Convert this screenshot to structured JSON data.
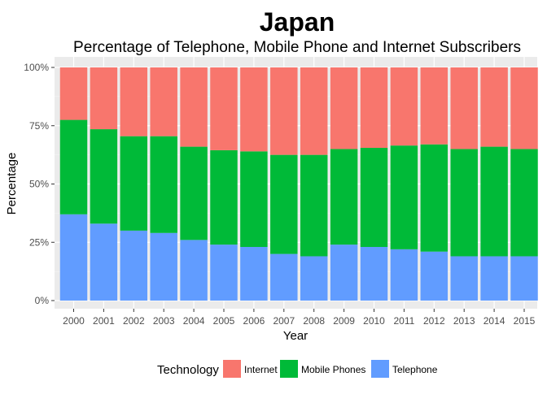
{
  "chart_data": {
    "type": "bar",
    "stacked": true,
    "normalized": true,
    "title": "Japan",
    "subtitle": "Percentage of Telephone, Mobile Phone and Internet Subscribers",
    "xlabel": "Year",
    "ylabel": "Percentage",
    "ylim": [
      0,
      1
    ],
    "yticks": [
      "0%",
      "25%",
      "50%",
      "75%",
      "100%"
    ],
    "ytick_values": [
      0,
      0.25,
      0.5,
      0.75,
      1.0
    ],
    "grid": true,
    "legend_title": "Technology",
    "legend_position": "bottom",
    "categories": [
      "2000",
      "2001",
      "2002",
      "2003",
      "2004",
      "2005",
      "2006",
      "2007",
      "2008",
      "2009",
      "2010",
      "2011",
      "2012",
      "2013",
      "2014",
      "2015"
    ],
    "series": [
      {
        "name": "Telephone",
        "color": "#619CFF",
        "values": [
          0.37,
          0.33,
          0.3,
          0.29,
          0.26,
          0.24,
          0.23,
          0.2,
          0.19,
          0.24,
          0.23,
          0.22,
          0.21,
          0.19,
          0.19,
          0.19
        ]
      },
      {
        "name": "Mobile Phones",
        "color": "#00BA38",
        "values": [
          0.405,
          0.405,
          0.405,
          0.415,
          0.4,
          0.405,
          0.41,
          0.425,
          0.435,
          0.41,
          0.425,
          0.445,
          0.46,
          0.46,
          0.47,
          0.46
        ]
      },
      {
        "name": "Internet",
        "color": "#F8766D",
        "values": [
          0.225,
          0.265,
          0.295,
          0.295,
          0.34,
          0.355,
          0.36,
          0.375,
          0.375,
          0.35,
          0.345,
          0.335,
          0.33,
          0.35,
          0.34,
          0.35
        ]
      }
    ],
    "legend_order": [
      "Internet",
      "Mobile Phones",
      "Telephone"
    ]
  }
}
